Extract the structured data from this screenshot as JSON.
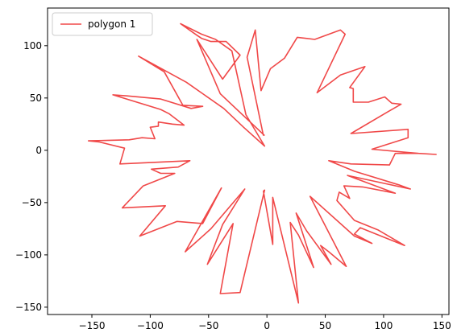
{
  "chart_data": {
    "type": "line",
    "title": "",
    "xlabel": "",
    "ylabel": "",
    "xlim": [
      -188,
      156
    ],
    "ylim": [
      -157,
      136
    ],
    "xticks": [
      -150,
      -100,
      -50,
      0,
      50,
      100,
      150
    ],
    "yticks": [
      -150,
      -100,
      -50,
      0,
      50,
      100
    ],
    "grid": false,
    "legend_position": "top-left",
    "series": [
      {
        "name": "polygon 1",
        "color": "#f04848",
        "points": [
          [
            -3,
            14
          ],
          [
            -17,
            89
          ],
          [
            -10,
            115
          ],
          [
            -5,
            57
          ],
          [
            3,
            78
          ],
          [
            15,
            88
          ],
          [
            26,
            108
          ],
          [
            41,
            106
          ],
          [
            63,
            115
          ],
          [
            67,
            111
          ],
          [
            43,
            55
          ],
          [
            63,
            72
          ],
          [
            84,
            80
          ],
          [
            71,
            60
          ],
          [
            74,
            59
          ],
          [
            74,
            46
          ],
          [
            87,
            46
          ],
          [
            101,
            51
          ],
          [
            107,
            45
          ],
          [
            115,
            44
          ],
          [
            104,
            37
          ],
          [
            72,
            16
          ],
          [
            121,
            20
          ],
          [
            121,
            12
          ],
          [
            90,
            1
          ],
          [
            130,
            -3
          ],
          [
            145,
            -4
          ],
          [
            130,
            -3
          ],
          [
            110,
            -3
          ],
          [
            105,
            -14
          ],
          [
            72,
            -13
          ],
          [
            53,
            -10
          ],
          [
            75,
            -20
          ],
          [
            113,
            -33
          ],
          [
            123,
            -37
          ],
          [
            69,
            -24
          ],
          [
            110,
            -41
          ],
          [
            82,
            -35
          ],
          [
            66,
            -34
          ],
          [
            71,
            -46
          ],
          [
            62,
            -40
          ],
          [
            60,
            -48
          ],
          [
            75,
            -67
          ],
          [
            95,
            -76
          ],
          [
            118,
            -91
          ],
          [
            80,
            -74
          ],
          [
            75,
            -80
          ],
          [
            90,
            -89
          ],
          [
            75,
            -82
          ],
          [
            37,
            -44
          ],
          [
            68,
            -111
          ],
          [
            53,
            -97
          ],
          [
            46,
            -91
          ],
          [
            55,
            -109
          ],
          [
            34,
            -77
          ],
          [
            25,
            -60
          ],
          [
            40,
            -112
          ],
          [
            27,
            -81
          ],
          [
            20,
            -69
          ],
          [
            27,
            -146
          ],
          [
            5,
            -45
          ],
          [
            5,
            -90
          ],
          [
            -3,
            -39
          ],
          [
            -2,
            -38
          ],
          [
            -23,
            -136
          ],
          [
            -40,
            -137
          ],
          [
            -29,
            -70
          ],
          [
            -51,
            -109
          ],
          [
            -38,
            -71
          ],
          [
            -19,
            -37
          ],
          [
            -48,
            -75
          ],
          [
            -70,
            -97
          ],
          [
            -39,
            -36
          ],
          [
            -55,
            -70
          ],
          [
            -77,
            -68
          ],
          [
            -109,
            -82
          ],
          [
            -87,
            -53
          ],
          [
            -124,
            -55
          ],
          [
            -106,
            -34
          ],
          [
            -79,
            -22
          ],
          [
            -91,
            -22
          ],
          [
            -99,
            -18
          ],
          [
            -76,
            -16
          ],
          [
            -66,
            -10
          ],
          [
            -126,
            -13
          ],
          [
            -122,
            2
          ],
          [
            -144,
            8
          ],
          [
            -153,
            9
          ],
          [
            -118,
            10
          ],
          [
            -107,
            12
          ],
          [
            -96,
            11
          ],
          [
            -100,
            22
          ],
          [
            -93,
            23
          ],
          [
            -93,
            27
          ],
          [
            -81,
            25
          ],
          [
            -71,
            24
          ],
          [
            -84,
            35
          ],
          [
            -91,
            39
          ],
          [
            -132,
            53
          ],
          [
            -120,
            52
          ],
          [
            -91,
            49
          ],
          [
            -65,
            40
          ],
          [
            -55,
            42
          ],
          [
            -72,
            43
          ],
          [
            -88,
            75
          ],
          [
            -110,
            90
          ],
          [
            -69,
            65
          ],
          [
            -37,
            40
          ],
          [
            -20,
            22
          ],
          [
            -2,
            4
          ],
          [
            -18,
            34
          ],
          [
            -30,
            95
          ],
          [
            -44,
            106
          ],
          [
            -56,
            111
          ],
          [
            -74,
            121
          ],
          [
            -60,
            110
          ],
          [
            -56,
            107
          ],
          [
            -48,
            104
          ],
          [
            -35,
            104
          ],
          [
            -23,
            91
          ],
          [
            -38,
            68
          ],
          [
            -60,
            106
          ],
          [
            -40,
            54
          ],
          [
            -2,
            14
          ]
        ]
      }
    ]
  }
}
